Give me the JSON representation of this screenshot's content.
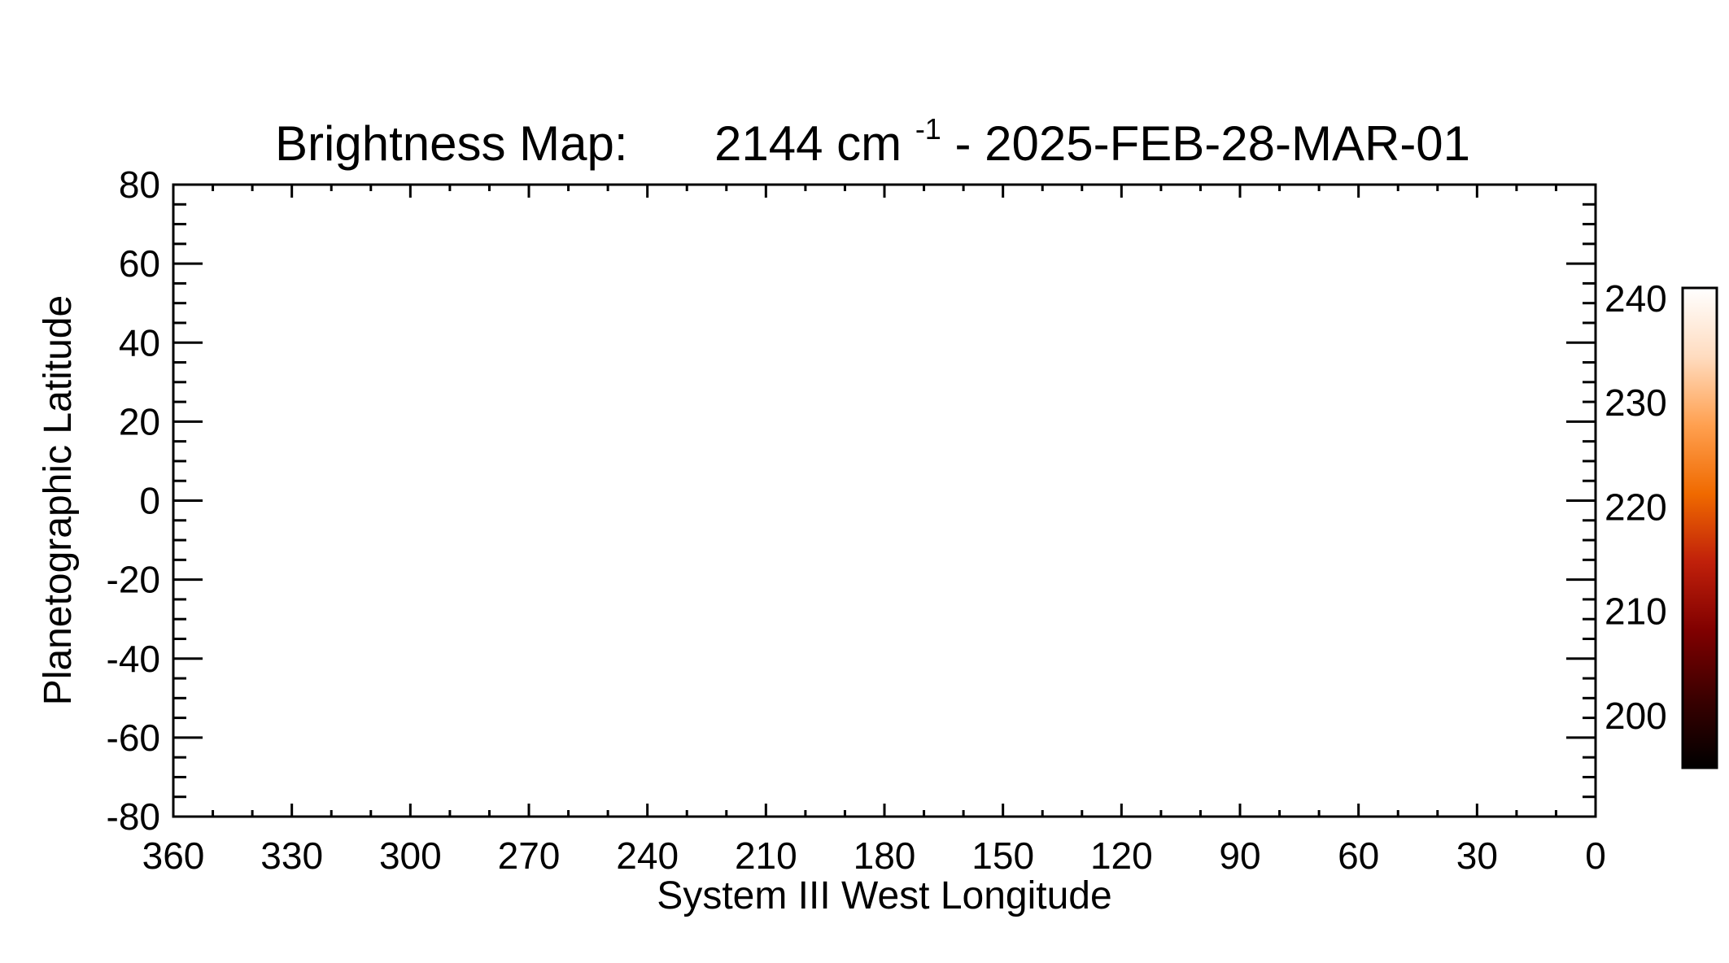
{
  "chart_data": {
    "type": "heatmap",
    "title": {
      "prefix": "Brightness Map:",
      "wavenumber": "2144 cm",
      "exponent": "-1",
      "suffix": " - 2025-FEB-28-MAR-01"
    },
    "xlabel": "System III West Longitude",
    "ylabel": "Planetographic Latitude",
    "xlim": [
      360,
      0
    ],
    "ylim": [
      -80,
      80
    ],
    "x_ticks": [
      "360",
      "330",
      "300",
      "270",
      "240",
      "210",
      "180",
      "150",
      "120",
      "90",
      "60",
      "30",
      "0"
    ],
    "y_ticks": [
      "80",
      "60",
      "40",
      "20",
      "0",
      "-20",
      "-40",
      "-60",
      "-80"
    ],
    "map_data": [],
    "colorbar": {
      "range": [
        195,
        241
      ],
      "ticks": [
        "240",
        "230",
        "220",
        "210",
        "200"
      ],
      "colormap": [
        "#000000",
        "#3a0000",
        "#800000",
        "#c0200a",
        "#f06a00",
        "#ffa050",
        "#ffdcc0",
        "#ffffff"
      ]
    }
  }
}
